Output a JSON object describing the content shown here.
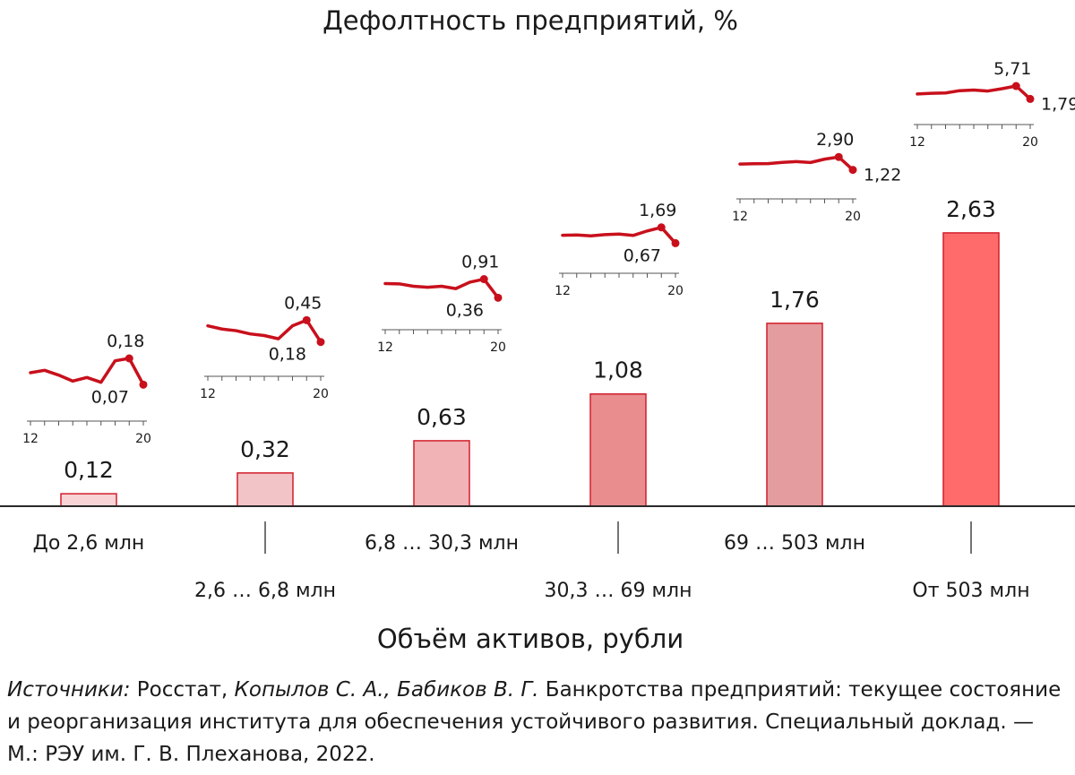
{
  "chart_data": {
    "type": "bar",
    "title": "Дефолтность предприятий, %",
    "xlabel": "Объём активов, рубли",
    "ylabel": "",
    "ylim": [
      0,
      3
    ],
    "categories": [
      "До 2,6 млн",
      "2,6 … 6,8 млн",
      "6,8 … 30,3 млн",
      "30,3 … 69 млн",
      "69 … 503 млн",
      "От 503 млн"
    ],
    "values": [
      0.12,
      0.32,
      0.63,
      1.08,
      1.76,
      2.63
    ],
    "value_labels": [
      "0,12",
      "0,32",
      "0,63",
      "1,08",
      "1,76",
      "2,63"
    ],
    "bar_colors": [
      "#f8d4d6",
      "#f3c4c7",
      "#f1b3b6",
      "#e98d8f",
      "#e49c9e",
      "#ff6b6b"
    ],
    "bar_stroke": "#d21e2b",
    "sparkline_color": "#c8101c",
    "sparklines": [
      {
        "years": [
          2012,
          2013,
          2014,
          2015,
          2016,
          2017,
          2018,
          2019,
          2020
        ],
        "values": [
          0.12,
          0.13,
          0.11,
          0.085,
          0.1,
          0.08,
          0.17,
          0.18,
          0.07
        ],
        "peak_label": "0,18",
        "last_label": "0,07",
        "tick_start": "12",
        "tick_end": "20"
      },
      {
        "years": [
          2012,
          2013,
          2014,
          2015,
          2016,
          2017,
          2018,
          2019,
          2020
        ],
        "values": [
          0.38,
          0.34,
          0.32,
          0.28,
          0.26,
          0.22,
          0.38,
          0.45,
          0.18
        ],
        "peak_label": "0,45",
        "last_label": "0,18",
        "tick_start": "12",
        "tick_end": "20"
      },
      {
        "years": [
          2012,
          2013,
          2014,
          2015,
          2016,
          2017,
          2018,
          2019,
          2020
        ],
        "values": [
          0.78,
          0.77,
          0.7,
          0.67,
          0.7,
          0.63,
          0.82,
          0.91,
          0.36
        ],
        "peak_label": "0,91",
        "last_label": "0,36",
        "tick_start": "12",
        "tick_end": "20"
      },
      {
        "years": [
          2012,
          2013,
          2014,
          2015,
          2016,
          2017,
          2018,
          2019,
          2020
        ],
        "values": [
          1.18,
          1.2,
          1.14,
          1.22,
          1.26,
          1.17,
          1.46,
          1.69,
          0.67
        ],
        "peak_label": "1,69",
        "last_label": "0,67",
        "tick_start": "12",
        "tick_end": "20"
      },
      {
        "years": [
          2012,
          2013,
          2014,
          2015,
          2016,
          2017,
          2018,
          2019,
          2020
        ],
        "values": [
          1.98,
          2.02,
          2.04,
          2.2,
          2.3,
          2.18,
          2.62,
          2.9,
          1.22
        ],
        "peak_label": "2,90",
        "last_label": "1,22",
        "tick_start": "12",
        "tick_end": "20"
      },
      {
        "years": [
          2012,
          2013,
          2014,
          2015,
          2016,
          2017,
          2018,
          2019,
          2020
        ],
        "values": [
          3.3,
          3.5,
          3.6,
          4.3,
          4.5,
          4.2,
          4.9,
          5.71,
          1.79
        ],
        "peak_label": "5,71",
        "last_label": "1,79",
        "tick_start": "12",
        "tick_end": "20"
      }
    ]
  },
  "source": {
    "prefix_italic": "Источники:",
    "part1": " Росстат, ",
    "authors_italic": "Копылов С. А., Бабиков В. Г.",
    "part2": " Банкротства предприятий: текущее состояние и реорганизация института для обеспечения устойчивого развития. Специальный доклад. — М.: РЭУ им. Г. В. Плеханова, 2022."
  }
}
